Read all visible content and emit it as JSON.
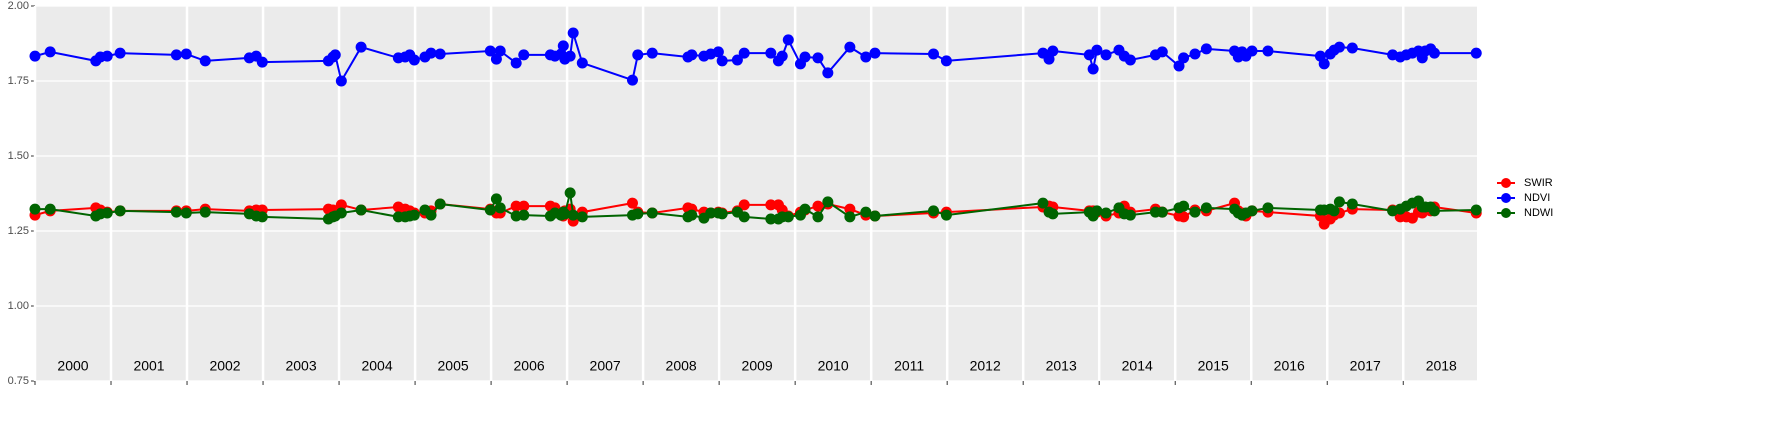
{
  "chart_data": {
    "type": "line",
    "x": [
      2000.0,
      2000.2,
      2000.8,
      2000.86,
      2000.95,
      2001.12,
      2001.86,
      2001.99,
      2002.24,
      2002.82,
      2002.91,
      2002.99,
      2003.86,
      2003.92,
      2003.95,
      2004.03,
      2004.29,
      2004.78,
      2004.87,
      2004.93,
      2004.99,
      2005.13,
      2005.21,
      2005.33,
      2005.99,
      2006.07,
      2006.12,
      2006.33,
      2006.43,
      2006.78,
      2006.84,
      2006.92,
      2006.95,
      2006.97,
      2007.04,
      2007.08,
      2007.2,
      2007.86,
      2007.93,
      2008.12,
      2008.59,
      2008.64,
      2008.8,
      2008.89,
      2008.99,
      2009.04,
      2009.24,
      2009.33,
      2009.68,
      2009.78,
      2009.83,
      2009.91,
      2010.07,
      2010.13,
      2010.3,
      2010.43,
      2010.72,
      2010.93,
      2011.05,
      2011.82,
      2011.99,
      2013.26,
      2013.34,
      2013.39,
      2013.87,
      2013.92,
      2013.97,
      2014.09,
      2014.26,
      2014.33,
      2014.41,
      2014.74,
      2014.83,
      2015.05,
      2015.11,
      2015.26,
      2015.41,
      2015.78,
      2015.83,
      2015.88,
      2015.93,
      2016.01,
      2016.22,
      2016.91,
      2016.96,
      2017.04,
      2017.09,
      2017.16,
      2017.33,
      2017.86,
      2017.96,
      2018.04,
      2018.12,
      2018.2,
      2018.25,
      2018.29,
      2018.36,
      2018.41,
      2018.96
    ],
    "series": [
      {
        "name": "SWIR",
        "color": "#ff0000",
        "values": [
          1.303,
          1.317,
          1.327,
          1.32,
          1.313,
          1.317,
          1.317,
          1.317,
          1.323,
          1.317,
          1.32,
          1.32,
          1.323,
          1.32,
          1.313,
          1.337,
          1.32,
          1.33,
          1.323,
          1.317,
          1.31,
          1.31,
          1.317,
          1.34,
          1.323,
          1.31,
          1.31,
          1.333,
          1.333,
          1.333,
          1.327,
          1.31,
          1.3,
          1.317,
          1.323,
          1.283,
          1.313,
          1.343,
          1.313,
          1.31,
          1.327,
          1.323,
          1.313,
          1.31,
          1.313,
          1.31,
          1.317,
          1.337,
          1.337,
          1.337,
          1.32,
          1.3,
          1.313,
          1.32,
          1.333,
          1.34,
          1.323,
          1.303,
          1.3,
          1.31,
          1.313,
          1.33,
          1.333,
          1.33,
          1.317,
          1.317,
          1.313,
          1.3,
          1.31,
          1.333,
          1.313,
          1.323,
          1.313,
          1.3,
          1.297,
          1.32,
          1.317,
          1.343,
          1.317,
          1.31,
          1.3,
          1.317,
          1.313,
          1.3,
          1.273,
          1.29,
          1.303,
          1.31,
          1.323,
          1.32,
          1.297,
          1.297,
          1.293,
          1.313,
          1.31,
          1.32,
          1.317,
          1.33,
          1.31
        ]
      },
      {
        "name": "NDVI",
        "color": "#0000ff",
        "values": [
          1.833,
          1.847,
          1.817,
          1.83,
          1.833,
          1.843,
          1.837,
          1.84,
          1.817,
          1.827,
          1.833,
          1.813,
          1.817,
          1.83,
          1.837,
          1.75,
          1.863,
          1.827,
          1.83,
          1.837,
          1.82,
          1.83,
          1.843,
          1.84,
          1.85,
          1.823,
          1.85,
          1.81,
          1.837,
          1.837,
          1.833,
          1.84,
          1.867,
          1.823,
          1.833,
          1.91,
          1.81,
          1.753,
          1.837,
          1.843,
          1.83,
          1.837,
          1.833,
          1.84,
          1.847,
          1.817,
          1.82,
          1.843,
          1.843,
          1.817,
          1.833,
          1.887,
          1.807,
          1.83,
          1.827,
          1.777,
          1.863,
          1.83,
          1.843,
          1.84,
          1.817,
          1.843,
          1.823,
          1.85,
          1.837,
          1.79,
          1.853,
          1.837,
          1.853,
          1.833,
          1.82,
          1.837,
          1.847,
          1.8,
          1.827,
          1.84,
          1.857,
          1.85,
          1.83,
          1.847,
          1.833,
          1.85,
          1.85,
          1.833,
          1.807,
          1.84,
          1.853,
          1.863,
          1.86,
          1.837,
          1.83,
          1.837,
          1.843,
          1.85,
          1.827,
          1.85,
          1.857,
          1.843,
          1.843
        ]
      },
      {
        "name": "NDWI",
        "color": "#006400",
        "values": [
          1.323,
          1.323,
          1.3,
          1.307,
          1.31,
          1.317,
          1.313,
          1.31,
          1.313,
          1.307,
          1.3,
          1.297,
          1.29,
          1.297,
          1.3,
          1.31,
          1.32,
          1.297,
          1.297,
          1.3,
          1.303,
          1.32,
          1.303,
          1.34,
          1.32,
          1.357,
          1.327,
          1.3,
          1.303,
          1.3,
          1.31,
          1.303,
          1.313,
          1.307,
          1.377,
          1.303,
          1.297,
          1.303,
          1.307,
          1.31,
          1.297,
          1.303,
          1.293,
          1.31,
          1.31,
          1.307,
          1.313,
          1.297,
          1.29,
          1.29,
          1.297,
          1.297,
          1.303,
          1.323,
          1.297,
          1.347,
          1.297,
          1.313,
          1.3,
          1.317,
          1.303,
          1.343,
          1.313,
          1.307,
          1.313,
          1.3,
          1.317,
          1.31,
          1.327,
          1.307,
          1.303,
          1.313,
          1.313,
          1.327,
          1.333,
          1.313,
          1.327,
          1.323,
          1.31,
          1.303,
          1.31,
          1.317,
          1.327,
          1.32,
          1.32,
          1.323,
          1.317,
          1.347,
          1.34,
          1.317,
          1.323,
          1.333,
          1.343,
          1.35,
          1.33,
          1.33,
          1.33,
          1.317,
          1.32
        ]
      }
    ],
    "xlim": [
      2000.0,
      2018.97
    ],
    "xticks": [
      2000,
      2001,
      2002,
      2003,
      2004,
      2005,
      2006,
      2007,
      2008,
      2009,
      2010,
      2011,
      2012,
      2013,
      2014,
      2015,
      2016,
      2017,
      2018
    ],
    "ylim": [
      0.75,
      2.0
    ],
    "yticks": [
      {
        "value": 0.75,
        "label": "0.75"
      },
      {
        "value": 1.0,
        "label": "1.00"
      },
      {
        "value": 1.25,
        "label": "1.25"
      },
      {
        "value": 1.5,
        "label": "1.50"
      },
      {
        "value": 1.75,
        "label": "1.75"
      },
      {
        "value": 2.0,
        "label": "2.00"
      }
    ],
    "year_labels": [
      {
        "value": 2000.5,
        "label": "2000"
      },
      {
        "value": 2001.5,
        "label": "2001"
      },
      {
        "value": 2002.5,
        "label": "2002"
      },
      {
        "value": 2003.5,
        "label": "2003"
      },
      {
        "value": 2004.5,
        "label": "2004"
      },
      {
        "value": 2005.5,
        "label": "2005"
      },
      {
        "value": 2006.5,
        "label": "2006"
      },
      {
        "value": 2007.5,
        "label": "2007"
      },
      {
        "value": 2008.5,
        "label": "2008"
      },
      {
        "value": 2009.5,
        "label": "2009"
      },
      {
        "value": 2010.5,
        "label": "2010"
      },
      {
        "value": 2011.5,
        "label": "2011"
      },
      {
        "value": 2012.5,
        "label": "2012"
      },
      {
        "value": 2013.5,
        "label": "2013"
      },
      {
        "value": 2014.5,
        "label": "2014"
      },
      {
        "value": 2015.5,
        "label": "2015"
      },
      {
        "value": 2016.5,
        "label": "2016"
      },
      {
        "value": 2017.5,
        "label": "2017"
      },
      {
        "value": 2018.5,
        "label": "2018"
      }
    ],
    "grid": true,
    "legend": "right"
  }
}
